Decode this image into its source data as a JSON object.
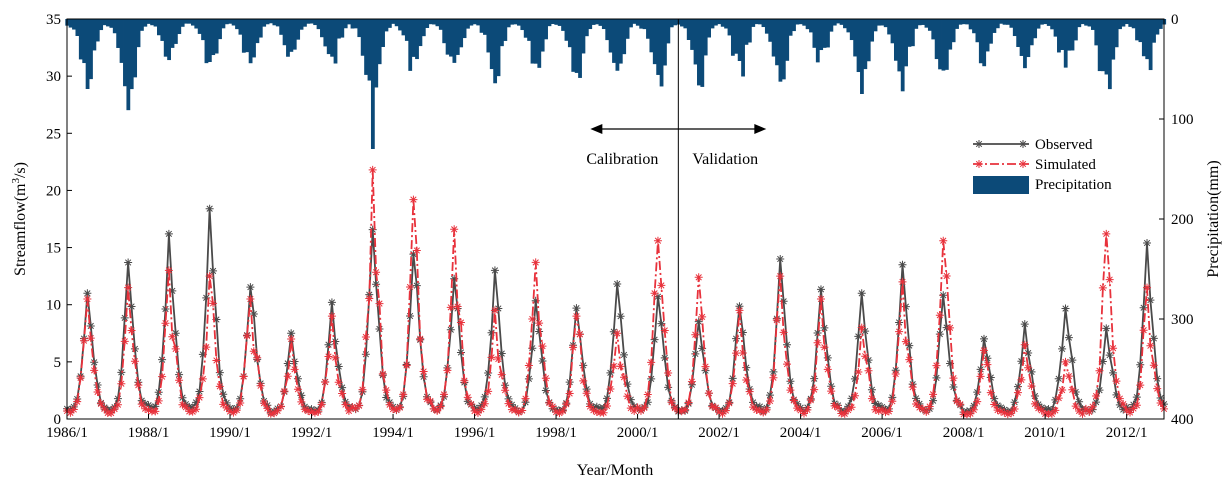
{
  "chart_data": {
    "type": "line",
    "xlabel": "Year/Month",
    "ylabel_left": "Streamflow(m",
    "ylabel_left_sup": "3",
    "ylabel_left_suffix": "/s)",
    "ylabel_right": "Precipitation(mm)",
    "ylim_left": [
      0,
      35
    ],
    "ylim_right": [
      0,
      400
    ],
    "right_axis_inverted": true,
    "x_start": "1986/1",
    "x_end": "2012/12",
    "x_ticks": [
      "1986/1",
      "1988/1",
      "1990/1",
      "1992/1",
      "1994/1",
      "1996/1",
      "1998/1",
      "2000/1",
      "2002/1",
      "2004/1",
      "2006/1",
      "2008/1",
      "2010/1",
      "2012/1"
    ],
    "y_ticks_left": [
      0,
      5,
      10,
      15,
      20,
      25,
      30,
      35
    ],
    "y_ticks_right": [
      0,
      100,
      200,
      300,
      400
    ],
    "legend": {
      "position": "right",
      "entries": [
        {
          "name": "Observed",
          "style": "line-star",
          "color": "#4a4a4a"
        },
        {
          "name": "Simulated",
          "style": "dashdot-star",
          "color": "#e8323c"
        },
        {
          "name": "Precipitation",
          "style": "bar",
          "color": "#0c4a78"
        }
      ]
    },
    "annotations": {
      "split_date": "2001/1",
      "left_label": "Calibration",
      "right_label": "Validation"
    },
    "peaks": [
      {
        "year": 1986,
        "peak_month": 8,
        "observed_peak": 11.5,
        "simulated_peak": 10.5,
        "precip_peak": 70
      },
      {
        "year": 1987,
        "peak_month": 7,
        "observed_peak": 13.8,
        "simulated_peak": 11.5,
        "precip_peak": 98
      },
      {
        "year": 1988,
        "peak_month": 7,
        "observed_peak": 16.2,
        "simulated_peak": 13.0,
        "precip_peak": 45
      },
      {
        "year": 1989,
        "peak_month": 7,
        "observed_peak": 18.4,
        "simulated_peak": 12.5,
        "precip_peak": 55
      },
      {
        "year": 1990,
        "peak_month": 7,
        "observed_peak": 12.0,
        "simulated_peak": 10.5,
        "precip_peak": 55
      },
      {
        "year": 1991,
        "peak_month": 7,
        "observed_peak": 7.5,
        "simulated_peak": 7.0,
        "precip_peak": 45
      },
      {
        "year": 1992,
        "peak_month": 7,
        "observed_peak": 10.2,
        "simulated_peak": 9.0,
        "precip_peak": 50
      },
      {
        "year": 1993,
        "peak_month": 7,
        "observed_peak": 17.2,
        "simulated_peak": 21.8,
        "precip_peak": 130
      },
      {
        "year": 1994,
        "peak_month": 7,
        "observed_peak": 15.5,
        "simulated_peak": 19.2,
        "precip_peak": 60
      },
      {
        "year": 1995,
        "peak_month": 7,
        "observed_peak": 13.0,
        "simulated_peak": 16.6,
        "precip_peak": 70
      },
      {
        "year": 1996,
        "peak_month": 7,
        "observed_peak": 13.0,
        "simulated_peak": 9.5,
        "precip_peak": 75
      },
      {
        "year": 1997,
        "peak_month": 7,
        "observed_peak": 10.5,
        "simulated_peak": 13.7,
        "precip_peak": 55
      },
      {
        "year": 1998,
        "peak_month": 7,
        "observed_peak": 9.7,
        "simulated_peak": 9.0,
        "precip_peak": 65
      },
      {
        "year": 1999,
        "peak_month": 7,
        "observed_peak": 12.9,
        "simulated_peak": 7.5,
        "precip_peak": 60
      },
      {
        "year": 2000,
        "peak_month": 7,
        "observed_peak": 11.0,
        "simulated_peak": 15.6,
        "precip_peak": 80
      },
      {
        "year": 2001,
        "peak_month": 7,
        "observed_peak": 9.0,
        "simulated_peak": 12.4,
        "precip_peak": 75
      },
      {
        "year": 2002,
        "peak_month": 7,
        "observed_peak": 10.7,
        "simulated_peak": 9.5,
        "precip_peak": 70
      },
      {
        "year": 2003,
        "peak_month": 7,
        "observed_peak": 14.0,
        "simulated_peak": 12.5,
        "precip_peak": 80
      },
      {
        "year": 2004,
        "peak_month": 7,
        "observed_peak": 11.8,
        "simulated_peak": 10.5,
        "precip_peak": 50
      },
      {
        "year": 2005,
        "peak_month": 7,
        "observed_peak": 11.0,
        "simulated_peak": 8.0,
        "precip_peak": 75
      },
      {
        "year": 2006,
        "peak_month": 7,
        "observed_peak": 13.5,
        "simulated_peak": 12.0,
        "precip_peak": 80
      },
      {
        "year": 2007,
        "peak_month": 7,
        "observed_peak": 11.5,
        "simulated_peak": 15.6,
        "precip_peak": 70
      },
      {
        "year": 2008,
        "peak_month": 7,
        "observed_peak": 7.4,
        "simulated_peak": 6.0,
        "precip_peak": 50
      },
      {
        "year": 2009,
        "peak_month": 7,
        "observed_peak": 8.3,
        "simulated_peak": 6.5,
        "precip_peak": 55
      },
      {
        "year": 2010,
        "peak_month": 7,
        "observed_peak": 10.5,
        "simulated_peak": 5.0,
        "precip_peak": 60
      },
      {
        "year": 2011,
        "peak_month": 7,
        "observed_peak": 8.0,
        "simulated_peak": 16.2,
        "precip_peak": 90
      },
      {
        "year": 2012,
        "peak_month": 7,
        "observed_peak": 15.4,
        "simulated_peak": 11.5,
        "precip_peak": 65
      }
    ]
  }
}
